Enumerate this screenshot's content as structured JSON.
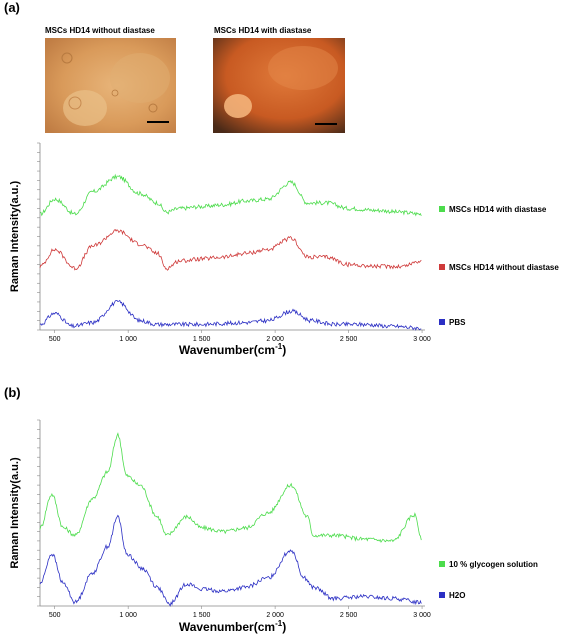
{
  "figure": {
    "panel_a_label": "(a)",
    "panel_b_label": "(b)",
    "photos": [
      {
        "title": "MSCs HD14 without diastase"
      },
      {
        "title": "MSCs HD14 with diastase"
      }
    ]
  },
  "chart_data": [
    {
      "type": "line",
      "panel": "a",
      "title": "",
      "xlabel": "Wavenumber(cm-1)",
      "ylabel": "Raman Intensity(a.u.)",
      "xlim": [
        400,
        3020
      ],
      "xticks": [
        500,
        1000,
        1500,
        2000,
        2500,
        3000
      ],
      "xtick_labels": [
        "500",
        "1 000",
        "1 500",
        "2 000",
        "2 500",
        "3 000"
      ],
      "ylim": [
        0,
        10
      ],
      "grid": false,
      "legend_position": "right",
      "series": [
        {
          "name": "MSCs HD14 with diastase",
          "color": "#4cdc4c",
          "x": [
            400,
            500,
            640,
            760,
            930,
            1080,
            1200,
            1260,
            1350,
            1500,
            1650,
            1800,
            1950,
            2110,
            2220,
            2350,
            2500,
            2700,
            2850,
            3000
          ],
          "y": [
            6.2,
            7.0,
            6.2,
            7.4,
            8.2,
            7.3,
            6.8,
            6.3,
            6.5,
            6.6,
            6.7,
            6.9,
            7.0,
            7.9,
            6.8,
            6.8,
            6.5,
            6.4,
            6.3,
            6.2
          ]
        },
        {
          "name": "MSCs HD14 without diastase",
          "color": "#cf3a3a",
          "x": [
            400,
            500,
            640,
            760,
            930,
            1080,
            1200,
            1260,
            1350,
            1500,
            1650,
            1800,
            1950,
            2110,
            2220,
            2350,
            2500,
            2700,
            2850,
            3000
          ],
          "y": [
            3.4,
            4.3,
            3.3,
            4.5,
            5.3,
            4.6,
            4.1,
            3.3,
            3.7,
            3.8,
            3.9,
            4.1,
            4.3,
            4.9,
            3.9,
            3.9,
            3.5,
            3.4,
            3.4,
            3.7
          ]
        },
        {
          "name": "PBS",
          "color": "#2b2fc4",
          "x": [
            400,
            500,
            620,
            760,
            930,
            1080,
            1200,
            1350,
            1500,
            1650,
            1800,
            1950,
            2110,
            2250,
            2400,
            2600,
            2800,
            3000
          ],
          "y": [
            0.3,
            0.9,
            0.2,
            0.4,
            1.5,
            0.5,
            0.3,
            0.3,
            0.3,
            0.35,
            0.4,
            0.5,
            1.0,
            0.5,
            0.3,
            0.3,
            0.2,
            0.1
          ]
        }
      ]
    },
    {
      "type": "line",
      "panel": "b",
      "title": "",
      "xlabel": "Wavenumber(cm-1)",
      "ylabel": "Raman Intensity(a.u.)",
      "xlim": [
        400,
        3020
      ],
      "xticks": [
        500,
        1000,
        1500,
        2000,
        2500,
        3000
      ],
      "xtick_labels": [
        "500",
        "1 000",
        "1 500",
        "2 000",
        "2 500",
        "3 000"
      ],
      "ylim": [
        0,
        10
      ],
      "grid": false,
      "legend_position": "right",
      "series": [
        {
          "name": "10 % glycogen solution",
          "color": "#4cdc4c",
          "x": [
            400,
            480,
            560,
            640,
            760,
            860,
            930,
            990,
            1080,
            1200,
            1260,
            1400,
            1500,
            1650,
            1800,
            1950,
            2110,
            2220,
            2260,
            2400,
            2600,
            2800,
            2950,
            3000
          ],
          "y": [
            4.2,
            6.0,
            4.2,
            3.8,
            5.8,
            7.2,
            9.2,
            7.0,
            6.5,
            4.8,
            3.8,
            4.8,
            4.2,
            4.0,
            4.2,
            5.0,
            6.5,
            4.8,
            3.8,
            3.8,
            3.6,
            3.5,
            4.9,
            3.5
          ]
        },
        {
          "name": "H2O",
          "color": "#2b2fc4",
          "x": [
            400,
            480,
            560,
            640,
            760,
            860,
            930,
            990,
            1100,
            1200,
            1280,
            1400,
            1500,
            1650,
            1800,
            1950,
            2110,
            2200,
            2260,
            2400,
            2600,
            2800,
            3000
          ],
          "y": [
            1.2,
            2.8,
            1.2,
            0.2,
            1.8,
            3.2,
            4.8,
            2.8,
            2.0,
            1.0,
            0.1,
            1.2,
            0.9,
            0.8,
            1.0,
            1.5,
            3.0,
            1.5,
            1.0,
            0.4,
            0.5,
            0.4,
            0.2
          ]
        }
      ]
    }
  ]
}
